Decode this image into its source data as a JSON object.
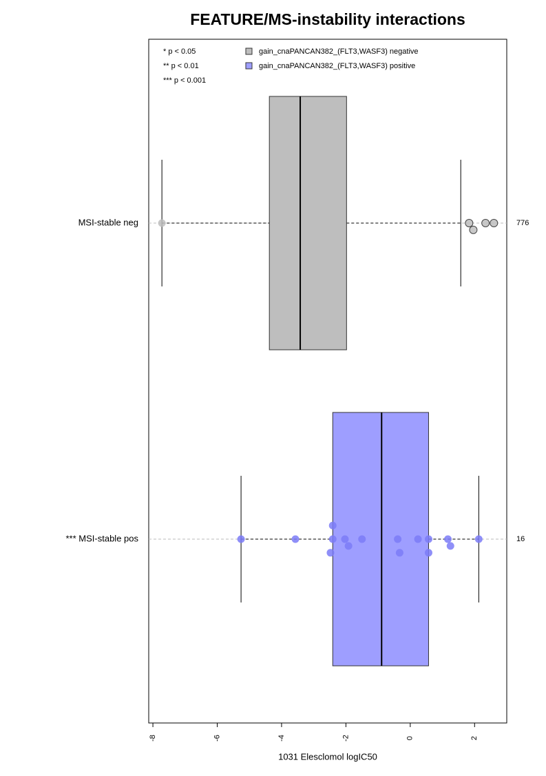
{
  "chart_data": {
    "type": "box",
    "title": "FEATURE/MS-instability interactions",
    "x_label": "1031 Elesclomol logIC50",
    "xlim": [
      -8.13,
      3.0
    ],
    "xticks": [
      -8,
      -6,
      -4,
      -2,
      0,
      2
    ],
    "significance_legend": [
      "* p < 0.05",
      "** p < 0.01",
      "*** p < 0.001"
    ],
    "categories": [
      "MSI-stable neg",
      "*** MSI-stable pos"
    ],
    "series": [
      {
        "name": "gain_cnaPANCAN382_(FLT3,WASF3) negative",
        "color": "#bebebe",
        "box_color": "#bebebe",
        "n": 776,
        "whislo": -7.72,
        "q1": -4.38,
        "med": -3.42,
        "q3": -1.98,
        "whishi": 1.57,
        "points": [
          -7.72,
          1.83,
          1.96,
          2.34,
          2.6
        ]
      },
      {
        "name": "gain_cnaPANCAN382_(FLT3,WASF3) positive",
        "color": "#7b7bf7",
        "box_color": "#9e9eff",
        "n": 16,
        "whislo": -5.26,
        "q1": -2.41,
        "med": -0.89,
        "q3": 0.57,
        "whishi": 2.13,
        "points": [
          -5.26,
          -3.57,
          -2.41,
          -2.48,
          -2.41,
          -2.03,
          -1.92,
          -1.5,
          -0.39,
          -0.33,
          0.24,
          0.57,
          0.57,
          1.17,
          1.25,
          2.13
        ]
      }
    ]
  }
}
